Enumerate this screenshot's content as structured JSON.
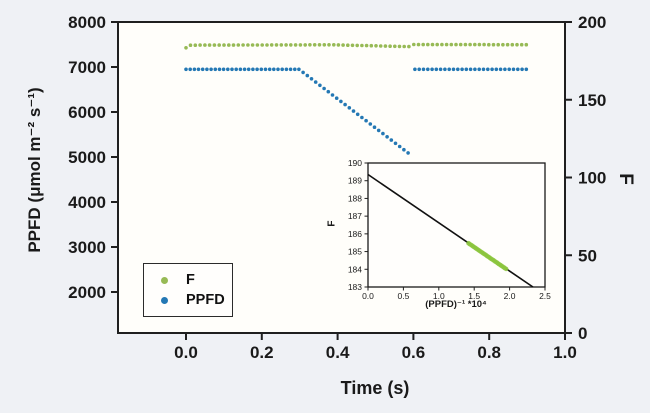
{
  "page": {
    "background_color": "#eff1f5",
    "plot_background_color": "#fffefa",
    "axis_color": "#1f1f1f"
  },
  "chart_data": {
    "type": "scatter",
    "title": "",
    "main": {
      "xlabel": "Time (s)",
      "ylabel_left": "PPFD (μmol m⁻² s⁻¹)",
      "ylabel_right": "F",
      "xlim": [
        -0.18,
        1.0
      ],
      "ylim_left": [
        1090,
        8000
      ],
      "ylim_right": [
        0,
        200
      ],
      "grid": false,
      "x_ticks": [
        {
          "v": 0.0,
          "label": "0.0"
        },
        {
          "v": 0.2,
          "label": "0.2"
        },
        {
          "v": 0.4,
          "label": "0.4"
        },
        {
          "v": 0.6,
          "label": "0.6"
        },
        {
          "v": 0.8,
          "label": "0.8"
        },
        {
          "v": 1.0,
          "label": "1.0"
        }
      ],
      "y_ticks_left": [
        {
          "v": 2000,
          "label": "2000"
        },
        {
          "v": 3000,
          "label": "3000"
        },
        {
          "v": 4000,
          "label": "4000"
        },
        {
          "v": 5000,
          "label": "5000"
        },
        {
          "v": 6000,
          "label": "6000"
        },
        {
          "v": 7000,
          "label": "7000"
        },
        {
          "v": 8000,
          "label": "8000"
        }
      ],
      "y_ticks_right": [
        {
          "v": 0,
          "label": "0"
        },
        {
          "v": 50,
          "label": "50"
        },
        {
          "v": 100,
          "label": "100"
        },
        {
          "v": 150,
          "label": "150"
        },
        {
          "v": 200,
          "label": "200"
        }
      ],
      "series": [
        {
          "name": "F",
          "axis": "right",
          "color": "#97ba55",
          "marker": "dot",
          "segments": [
            {
              "x0": 0.0,
              "x1": 0.0,
              "y0": 183.4,
              "y1": 183.4,
              "n": 1
            },
            {
              "x0": 0.012,
              "x1": 0.39,
              "y0": 185.1,
              "y1": 185.35,
              "n": 31
            },
            {
              "x0": 0.402,
              "x1": 0.588,
              "y0": 185.25,
              "y1": 184.15,
              "n": 16
            },
            {
              "x0": 0.601,
              "x1": 0.898,
              "y0": 185.5,
              "y1": 185.4,
              "n": 25
            }
          ]
        },
        {
          "name": "PPFD",
          "axis": "left",
          "color": "#2478b4",
          "marker": "dot",
          "segments": [
            {
              "x0": 0.0,
              "x1": 0.298,
              "y0": 6950,
              "y1": 6950,
              "n": 28
            },
            {
              "x0": 0.309,
              "x1": 0.586,
              "y0": 6880,
              "y1": 5090,
              "n": 26
            },
            {
              "x0": 0.604,
              "x1": 0.898,
              "y0": 6950,
              "y1": 6950,
              "n": 27
            }
          ]
        }
      ]
    },
    "legend": {
      "position": "lower left",
      "entries": [
        {
          "label": "F",
          "color": "#97ba55"
        },
        {
          "label": "PPFD",
          "color": "#2478b4"
        }
      ]
    },
    "inset": {
      "xlabel": "(PPFD)⁻¹ *10⁴",
      "ylabel": "F",
      "xlim": [
        0.0,
        2.5
      ],
      "ylim": [
        183,
        190
      ],
      "x_ticks": [
        {
          "v": 0.0,
          "label": "0.0"
        },
        {
          "v": 0.5,
          "label": "0.5"
        },
        {
          "v": 1.0,
          "label": "1.0"
        },
        {
          "v": 1.5,
          "label": "1.5"
        },
        {
          "v": 2.0,
          "label": "2.0"
        },
        {
          "v": 2.5,
          "label": "2.5"
        }
      ],
      "y_ticks": [
        {
          "v": 183,
          "label": "183"
        },
        {
          "v": 184,
          "label": "184"
        },
        {
          "v": 185,
          "label": "185"
        },
        {
          "v": 186,
          "label": "186"
        },
        {
          "v": 187,
          "label": "187"
        },
        {
          "v": 188,
          "label": "188"
        },
        {
          "v": 189,
          "label": "189"
        },
        {
          "v": 190,
          "label": "190"
        }
      ],
      "fit_line": {
        "color": "#111111",
        "x": [
          0.0,
          2.33
        ],
        "y": [
          189.35,
          183.0
        ]
      },
      "scatter": {
        "color": "#8cc63e",
        "x_start": 1.42,
        "x_end": 1.95,
        "y_start": 185.47,
        "y_end": 184.02,
        "n": 32
      }
    }
  }
}
